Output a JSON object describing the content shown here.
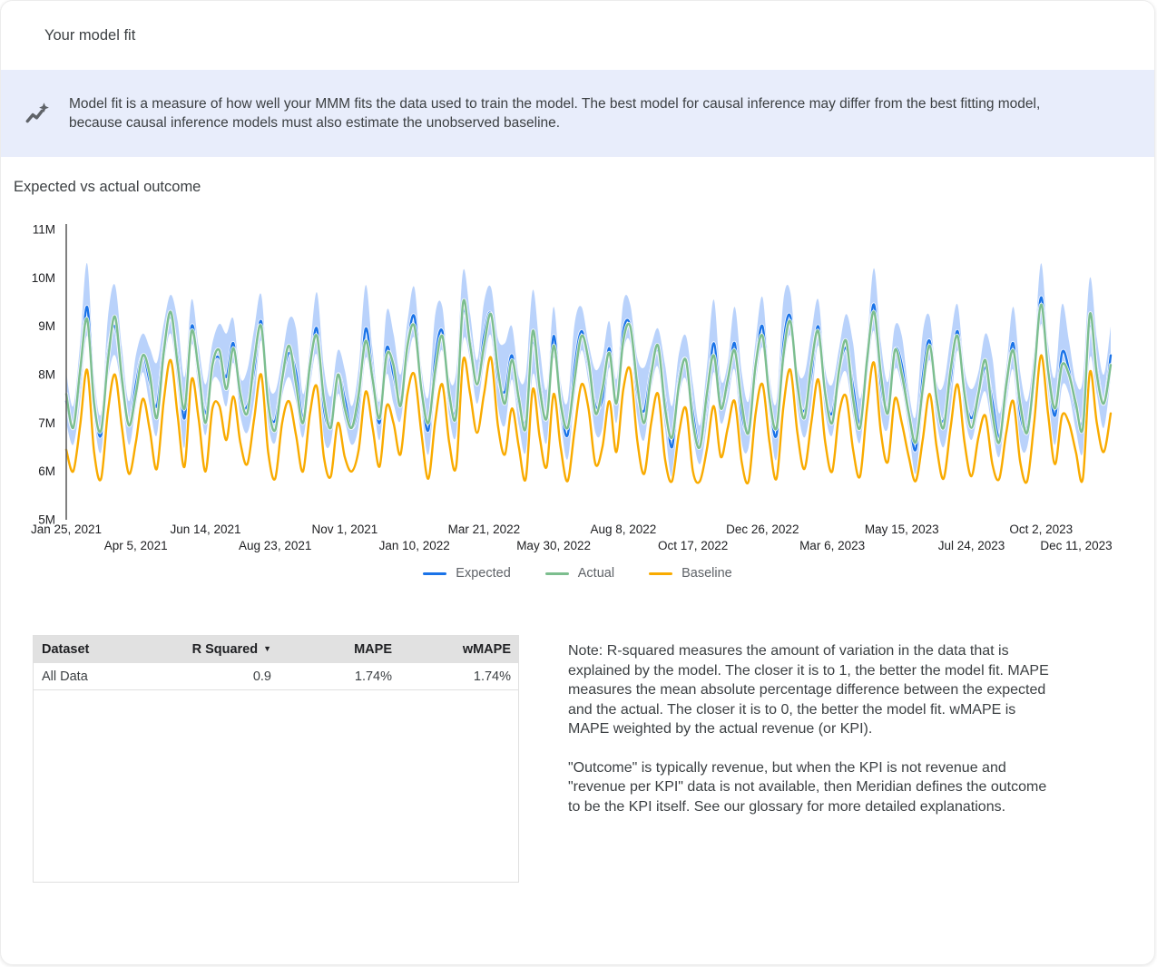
{
  "header": {
    "title": "Your model fit"
  },
  "banner": {
    "icon": "insights-icon",
    "text": "Model fit is a measure of how well your MMM fits the data used to train the model. The best model for causal inference may differ from the best fitting model, because causal inference models must also estimate the unobserved baseline."
  },
  "section": {
    "title": "Expected vs actual outcome"
  },
  "chart_data": {
    "type": "line",
    "title": "Expected vs actual outcome",
    "x_unit": "week",
    "n_points": 151,
    "ylim": [
      5,
      11
    ],
    "y_ticks": [
      "5M",
      "6M",
      "7M",
      "8M",
      "9M",
      "10M",
      "11M"
    ],
    "grid": false,
    "legend_position": "bottom",
    "band_color": "#a8c7fa",
    "x_ticks": [
      {
        "index": 0,
        "label": "Jan 25, 2021",
        "row": 1
      },
      {
        "index": 10,
        "label": "Apr 5, 2021",
        "row": 2
      },
      {
        "index": 20,
        "label": "Jun 14, 2021",
        "row": 1
      },
      {
        "index": 30,
        "label": "Aug 23, 2021",
        "row": 2
      },
      {
        "index": 40,
        "label": "Nov 1, 2021",
        "row": 1
      },
      {
        "index": 50,
        "label": "Jan 10, 2022",
        "row": 2
      },
      {
        "index": 60,
        "label": "Mar 21, 2022",
        "row": 1
      },
      {
        "index": 70,
        "label": "May 30, 2022",
        "row": 2
      },
      {
        "index": 80,
        "label": "Aug 8, 2022",
        "row": 1
      },
      {
        "index": 90,
        "label": "Oct 17, 2022",
        "row": 2
      },
      {
        "index": 100,
        "label": "Dec 26, 2022",
        "row": 1
      },
      {
        "index": 110,
        "label": "Mar 6, 2023",
        "row": 2
      },
      {
        "index": 120,
        "label": "May 15, 2023",
        "row": 1
      },
      {
        "index": 130,
        "label": "Jul 24, 2023",
        "row": 2
      },
      {
        "index": 140,
        "label": "Oct 2, 2023",
        "row": 1
      },
      {
        "index": 150,
        "label": "Dec 11, 2023",
        "row": 2
      }
    ],
    "legend": [
      {
        "label": "Expected",
        "color": "#1a73e8"
      },
      {
        "label": "Actual",
        "color": "#7cbe8e"
      },
      {
        "label": "Baseline",
        "color": "#f9ab00"
      }
    ],
    "series": {
      "expected": [
        7.45,
        6.9,
        7.95,
        9.4,
        7.5,
        6.75,
        8.45,
        9.0,
        8.0,
        6.95,
        7.8,
        8.4,
        7.85,
        7.35,
        8.55,
        9.2,
        8.35,
        7.1,
        9.0,
        8.1,
        7.2,
        8.2,
        8.35,
        7.95,
        8.65,
        7.5,
        7.35,
        8.1,
        9.1,
        7.4,
        7.05,
        7.9,
        8.45,
        8.05,
        7.1,
        8.1,
        8.95,
        7.3,
        7.0,
        8.0,
        7.5,
        6.9,
        7.45,
        8.95,
        8.0,
        7.0,
        8.55,
        8.0,
        7.45,
        8.6,
        9.2,
        7.7,
        6.85,
        8.35,
        8.9,
        7.5,
        7.3,
        9.3,
        8.7,
        7.8,
        8.8,
        9.25,
        7.95,
        7.65,
        8.4,
        7.4,
        7.05,
        8.7,
        7.8,
        7.1,
        8.8,
        7.4,
        6.75,
        8.15,
        8.9,
        8.2,
        7.35,
        7.5,
        8.55,
        7.4,
        8.9,
        9.0,
        7.65,
        7.25,
        8.1,
        8.5,
        7.45,
        6.5,
        7.9,
        8.3,
        7.2,
        6.5,
        7.45,
        8.65,
        7.4,
        7.8,
        8.65,
        7.2,
        6.9,
        8.2,
        9.0,
        7.5,
        6.75,
        8.65,
        9.2,
        7.7,
        7.25,
        8.0,
        9.0,
        7.6,
        7.2,
        8.1,
        8.55,
        7.75,
        7.0,
        8.2,
        9.45,
        7.8,
        7.3,
        8.5,
        8.2,
        7.2,
        6.45,
        7.95,
        8.7,
        7.4,
        7.05,
        7.9,
        8.9,
        7.6,
        7.1,
        7.6,
        8.15,
        7.45,
        6.7,
        7.7,
        8.65,
        7.2,
        6.9,
        8.0,
        9.6,
        8.1,
        7.15,
        8.45,
        8.1,
        7.3,
        7.05,
        9.05,
        8.1,
        7.4,
        8.4
      ],
      "actual": [
        7.6,
        6.9,
        8.1,
        9.15,
        7.4,
        6.85,
        8.3,
        9.2,
        7.9,
        6.95,
        7.6,
        8.4,
        8.0,
        7.1,
        8.45,
        9.3,
        8.2,
        7.3,
        8.9,
        8.1,
        7.0,
        8.2,
        8.5,
        7.7,
        8.55,
        7.6,
        7.2,
        8.3,
        9.0,
        7.4,
        6.85,
        7.9,
        8.6,
        7.8,
        7.0,
        8.2,
        8.8,
        7.5,
        6.9,
        8.0,
        7.3,
        6.9,
        7.6,
        8.7,
        7.9,
        7.1,
        8.4,
        8.2,
        7.35,
        8.6,
        9.0,
        7.7,
        7.0,
        8.1,
        8.8,
        7.6,
        7.15,
        9.5,
        8.6,
        7.8,
        8.6,
        9.25,
        8.1,
        7.4,
        8.3,
        7.5,
        6.9,
        8.9,
        7.7,
        7.1,
        8.6,
        7.4,
        6.9,
        7.9,
        8.8,
        8.3,
        7.2,
        7.7,
        8.45,
        7.4,
        8.7,
        9.0,
        7.8,
        7.0,
        8.0,
        8.6,
        7.3,
        6.7,
        7.8,
        8.3,
        7.0,
        6.5,
        7.6,
        8.4,
        7.3,
        7.9,
        8.5,
        7.4,
        6.8,
        8.2,
        8.8,
        7.5,
        6.9,
        8.4,
        9.1,
        7.8,
        7.1,
        8.2,
        8.9,
        7.6,
        7.0,
        8.1,
        8.7,
        7.5,
        6.9,
        8.3,
        9.3,
        8.0,
        7.2,
        8.5,
        8.0,
        7.2,
        6.6,
        7.7,
        8.6,
        7.5,
        6.9,
        8.1,
        8.8,
        7.6,
        6.9,
        7.6,
        8.3,
        7.2,
        6.6,
        7.8,
        8.5,
        7.4,
        6.8,
        8.0,
        9.45,
        8.1,
        7.3,
        8.2,
        8.0,
        7.4,
        6.9,
        9.25,
        8.0,
        7.4,
        8.2
      ],
      "baseline": [
        6.45,
        6.0,
        6.95,
        8.1,
        6.4,
        5.85,
        7.25,
        8.0,
        6.9,
        5.95,
        6.6,
        7.5,
        6.85,
        6.05,
        7.45,
        8.3,
        7.15,
        6.1,
        7.9,
        7.1,
        6.0,
        7.3,
        7.35,
        6.65,
        7.55,
        6.6,
        6.15,
        7.1,
        8.0,
        6.4,
        5.85,
        7.0,
        7.45,
        6.75,
        6.0,
        7.2,
        7.75,
        6.3,
        5.9,
        7.0,
        6.3,
        6.0,
        6.45,
        7.65,
        6.9,
        6.1,
        7.35,
        7.0,
        6.35,
        7.6,
        8.0,
        6.8,
        5.85,
        7.05,
        7.8,
        6.6,
        6.1,
        8.3,
        7.6,
        6.8,
        7.6,
        8.35,
        6.95,
        6.35,
        7.3,
        6.5,
        5.85,
        7.7,
        6.7,
        6.1,
        7.6,
        6.5,
        5.8,
        6.85,
        7.8,
        7.3,
        6.15,
        6.5,
        7.45,
        6.4,
        7.7,
        8.1,
        6.65,
        5.95,
        7.0,
        7.6,
        6.25,
        5.8,
        6.8,
        7.3,
        6.0,
        5.8,
        6.45,
        7.35,
        6.3,
        6.9,
        7.45,
        6.2,
        5.8,
        7.2,
        7.8,
        6.6,
        5.85,
        7.35,
        8.1,
        6.8,
        6.05,
        7.0,
        7.9,
        6.6,
        6.0,
        7.2,
        7.55,
        6.45,
        5.9,
        7.3,
        8.25,
        6.8,
        6.2,
        7.5,
        7.0,
        6.3,
        5.8,
        6.65,
        7.6,
        6.5,
        5.85,
        6.9,
        7.8,
        6.6,
        5.9,
        6.7,
        7.15,
        6.15,
        5.85,
        6.8,
        7.45,
        6.2,
        5.8,
        7.0,
        8.4,
        7.2,
        6.15,
        7.15,
        7.0,
        6.4,
        5.85,
        8.05,
        7.0,
        6.4,
        7.2
      ],
      "ci_upper_offset": [
        0.6,
        0.45,
        0.7,
        0.9,
        0.5,
        0.45,
        0.75,
        0.85,
        0.55,
        0.5,
        0.6,
        0.45,
        0.7,
        0.9,
        0.5,
        0.45,
        0.75,
        0.85,
        0.55,
        0.5,
        0.6,
        0.45,
        0.7,
        0.9,
        0.5,
        0.45,
        0.75,
        0.85,
        0.55,
        0.5,
        0.6,
        0.45,
        0.7,
        0.9,
        0.5,
        0.45,
        0.75,
        0.85,
        0.55,
        0.5,
        0.6,
        0.45,
        0.7,
        0.9,
        0.5,
        0.45,
        0.75,
        0.85,
        0.55,
        0.5,
        0.6,
        0.45,
        0.7,
        0.9,
        0.5,
        0.45,
        0.75,
        0.85,
        0.55,
        0.5,
        0.7,
        0.55,
        0.8,
        1.0,
        0.6,
        0.55,
        0.95,
        1.05,
        0.75,
        0.6,
        0.6,
        0.45,
        0.7,
        0.9,
        0.5,
        0.45,
        0.75,
        0.85,
        0.55,
        0.5,
        0.6,
        0.45,
        0.7,
        0.9,
        0.5,
        0.45,
        0.75,
        0.85,
        0.55,
        0.5,
        0.6,
        0.45,
        0.7,
        0.9,
        0.5,
        0.45,
        0.75,
        0.85,
        0.55,
        0.5,
        0.6,
        0.45,
        0.7,
        0.9,
        0.5,
        0.45,
        0.75,
        0.85,
        0.55,
        0.5,
        0.6,
        0.45,
        0.7,
        0.9,
        0.5,
        0.45,
        0.75,
        0.85,
        0.55,
        0.5,
        0.6,
        0.45,
        0.7,
        0.9,
        0.5,
        0.45,
        0.75,
        0.85,
        0.55,
        0.5,
        0.6,
        0.45,
        0.7,
        0.9,
        0.5,
        0.45,
        0.75,
        0.85,
        0.55,
        0.5,
        0.7,
        0.55,
        0.8,
        1.0,
        0.6,
        0.55,
        0.85,
        0.95,
        0.65,
        0.6,
        0.6
      ],
      "ci_lower_offset": [
        0.45,
        0.35,
        0.5,
        0.6,
        0.4,
        0.35,
        0.55,
        0.6,
        0.4,
        0.4,
        0.45,
        0.35,
        0.5,
        0.6,
        0.4,
        0.35,
        0.55,
        0.6,
        0.4,
        0.4,
        0.45,
        0.35,
        0.5,
        0.6,
        0.4,
        0.35,
        0.55,
        0.6,
        0.4,
        0.4,
        0.45,
        0.35,
        0.5,
        0.6,
        0.4,
        0.35,
        0.55,
        0.6,
        0.4,
        0.4,
        0.45,
        0.35,
        0.5,
        0.6,
        0.4,
        0.35,
        0.55,
        0.6,
        0.4,
        0.4,
        0.45,
        0.35,
        0.5,
        0.6,
        0.4,
        0.35,
        0.55,
        0.6,
        0.4,
        0.4,
        0.55,
        0.45,
        0.6,
        0.7,
        0.5,
        0.45,
        0.65,
        0.7,
        0.5,
        0.5,
        0.45,
        0.35,
        0.5,
        0.6,
        0.4,
        0.35,
        0.55,
        0.6,
        0.4,
        0.4,
        0.45,
        0.35,
        0.5,
        0.6,
        0.4,
        0.35,
        0.55,
        0.6,
        0.4,
        0.4,
        0.45,
        0.35,
        0.5,
        0.6,
        0.4,
        0.35,
        0.55,
        0.6,
        0.4,
        0.4,
        0.45,
        0.35,
        0.5,
        0.6,
        0.4,
        0.35,
        0.55,
        0.6,
        0.4,
        0.4,
        0.45,
        0.35,
        0.5,
        0.6,
        0.4,
        0.35,
        0.55,
        0.6,
        0.4,
        0.4,
        0.45,
        0.35,
        0.5,
        0.6,
        0.4,
        0.35,
        0.55,
        0.6,
        0.4,
        0.4,
        0.45,
        0.35,
        0.5,
        0.6,
        0.4,
        0.35,
        0.55,
        0.6,
        0.4,
        0.4,
        0.55,
        0.45,
        0.6,
        0.7,
        0.5,
        0.45,
        0.65,
        0.7,
        0.5,
        0.5,
        0.45
      ]
    }
  },
  "table": {
    "columns": [
      {
        "label": "Dataset"
      },
      {
        "label": "R Squared",
        "sort_icon": "▼"
      },
      {
        "label": "MAPE"
      },
      {
        "label": "wMAPE"
      }
    ],
    "rows": [
      {
        "cells": [
          "All Data",
          "0.9",
          "1.74%",
          "1.74%"
        ]
      }
    ]
  },
  "note": {
    "para1": "Note: R-squared measures the amount of variation in the data that is explained by the model. The closer it is to 1, the better the model fit. MAPE measures the mean absolute percentage difference between the expected and the actual. The closer it is to 0, the better the model fit. wMAPE is MAPE weighted by the actual revenue (or KPI).",
    "para2": "\"Outcome\" is typically revenue, but when the KPI is not revenue and \"revenue per KPI\" data is not available, then Meridian defines the outcome to be the KPI itself. See our glossary for more detailed explanations."
  }
}
